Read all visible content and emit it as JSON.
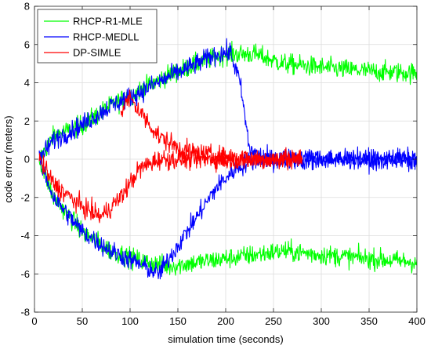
{
  "chart_data": {
    "type": "line",
    "title": "",
    "xlabel": "simulation time (seconds)",
    "ylabel": "code error (meters)",
    "xlim": [
      0,
      400
    ],
    "ylim": [
      -8,
      8
    ],
    "xticks": [
      0,
      50,
      100,
      150,
      200,
      250,
      300,
      350,
      400
    ],
    "yticks": [
      -8,
      -6,
      -4,
      -2,
      0,
      2,
      4,
      6,
      8
    ],
    "xtick_labels": [
      "0",
      "50",
      "100",
      "150",
      "200",
      "250",
      "300",
      "350",
      "400"
    ],
    "ytick_labels": [
      "-8",
      "-6",
      "-4",
      "-2",
      "0",
      "2",
      "4",
      "6",
      "8"
    ],
    "grid": true,
    "legend": "top-left",
    "noise_amplitude": 0.5,
    "series": [
      {
        "name": "RHCP-R1-MLE",
        "color": "#00ff00",
        "values": [
          {
            "x": [
              5,
              20,
              50,
              80,
              110,
              140,
              170,
              200,
              230,
              260,
              300,
              350,
              400
            ],
            "y": [
              0,
              1.2,
              1.8,
              2.8,
              3.6,
              4.4,
              5.0,
              5.5,
              5.5,
              5.0,
              4.8,
              4.6,
              4.5
            ]
          },
          {
            "x": [
              5,
              20,
              50,
              80,
              110,
              140,
              170,
              200,
              230,
              260,
              300,
              350,
              400
            ],
            "y": [
              0,
              -2.0,
              -3.8,
              -4.8,
              -5.3,
              -5.6,
              -5.4,
              -5.2,
              -5.0,
              -4.8,
              -5.0,
              -5.2,
              -5.4
            ]
          }
        ]
      },
      {
        "name": "RHCP-MEDLL",
        "color": "#0000ff",
        "values": [
          {
            "x": [
              5,
              20,
              50,
              80,
              110,
              140,
              170,
              190,
              205,
              215,
              225,
              235,
              245,
              260,
              300,
              350,
              400
            ],
            "y": [
              0,
              1.0,
              1.8,
              2.8,
              3.5,
              4.3,
              5.0,
              5.5,
              5.6,
              4.0,
              0.5,
              0.2,
              0.0,
              0.0,
              0.0,
              0.0,
              0.0
            ]
          },
          {
            "x": [
              5,
              20,
              50,
              80,
              110,
              130,
              150,
              170,
              190,
              210,
              230,
              250,
              300,
              350,
              400
            ],
            "y": [
              0,
              -2.0,
              -3.8,
              -4.8,
              -5.5,
              -6.0,
              -4.5,
              -3.0,
              -1.5,
              -0.5,
              0.0,
              0.0,
              0.0,
              0.0,
              0.0
            ]
          }
        ]
      },
      {
        "name": "DP-SIMLE",
        "color": "#ff0000",
        "values": [
          {
            "x": [
              5,
              20,
              50,
              70,
              90,
              110,
              130,
              150,
              170,
              200,
              230,
              260,
              280
            ],
            "y": [
              0,
              -1.3,
              -2.5,
              -3.0,
              -2.0,
              -0.5,
              0.0,
              0.0,
              0.0,
              0.0,
              0.0,
              0.0,
              0.0
            ]
          },
          {
            "x": [
              90,
              100,
              110,
              130,
              150,
              170,
              200,
              230,
              260,
              280
            ],
            "y": [
              2.5,
              3.2,
              2.5,
              1.2,
              0.6,
              0.3,
              0.1,
              0.0,
              0.0,
              0.0
            ]
          }
        ]
      }
    ]
  }
}
